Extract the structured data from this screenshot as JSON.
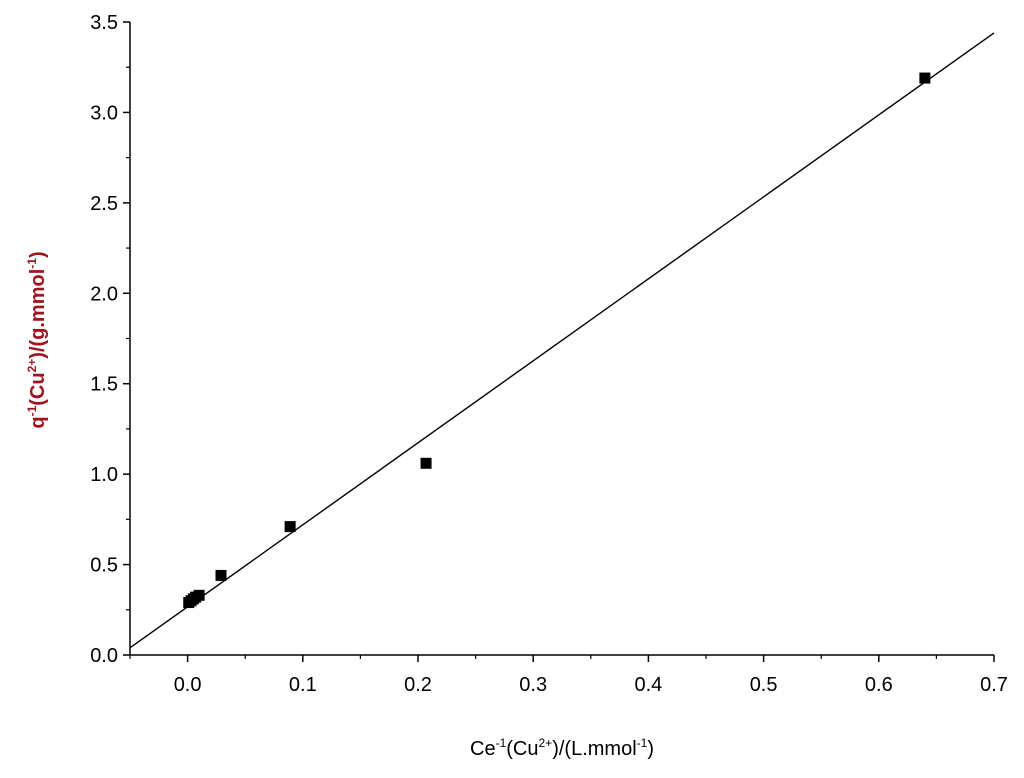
{
  "chart_data": {
    "type": "scatter",
    "title": "",
    "xlabel": {
      "parts": [
        {
          "text": "Ce",
          "sup": false
        },
        {
          "text": "-1",
          "sup": true
        },
        {
          "text": "(Cu",
          "sup": false
        },
        {
          "text": "2+",
          "sup": true
        },
        {
          "text": ")/(L.mmol",
          "sup": false
        },
        {
          "text": "-1",
          "sup": true
        },
        {
          "text": ")",
          "sup": false
        }
      ]
    },
    "ylabel": {
      "parts": [
        {
          "text": "q",
          "sup": false
        },
        {
          "text": "-1",
          "sup": true
        },
        {
          "text": "(Cu",
          "sup": false
        },
        {
          "text": "2+",
          "sup": true
        },
        {
          "text": ")/(g.mmol",
          "sup": false
        },
        {
          "text": "-1",
          "sup": true
        },
        {
          "text": ")",
          "sup": false
        }
      ]
    },
    "xlim": [
      -0.05,
      0.7
    ],
    "ylim": [
      0.0,
      3.5
    ],
    "xticks": [
      "0.0",
      "0.1",
      "0.2",
      "0.3",
      "0.4",
      "0.5",
      "0.6",
      "0.7"
    ],
    "yticks": [
      "0.0",
      "0.5",
      "1.0",
      "1.5",
      "2.0",
      "2.5",
      "3.0",
      "3.5"
    ],
    "grid": false,
    "series": [
      {
        "type": "scatter",
        "marker": "square",
        "color": "#000000",
        "points": [
          {
            "x": 0.001,
            "y": 0.29
          },
          {
            "x": 0.003,
            "y": 0.3
          },
          {
            "x": 0.005,
            "y": 0.31
          },
          {
            "x": 0.007,
            "y": 0.32
          },
          {
            "x": 0.01,
            "y": 0.33
          },
          {
            "x": 0.029,
            "y": 0.44
          },
          {
            "x": 0.089,
            "y": 0.71
          },
          {
            "x": 0.207,
            "y": 1.06
          },
          {
            "x": 0.64,
            "y": 3.19
          }
        ]
      },
      {
        "type": "line",
        "color": "#000000",
        "points": [
          {
            "x": -0.05,
            "y": 0.04
          },
          {
            "x": 0.7,
            "y": 3.44
          }
        ]
      }
    ]
  }
}
